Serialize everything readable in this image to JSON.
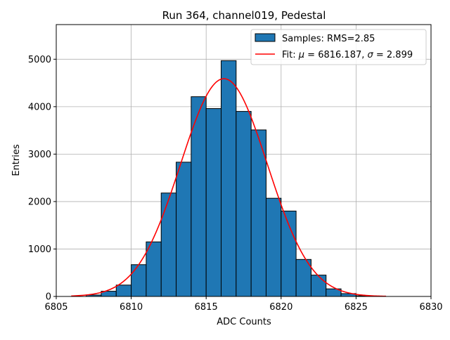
{
  "chart_data": {
    "type": "bar",
    "title": "Run 364, channel019, Pedestal",
    "xlabel": "ADC Counts",
    "ylabel": "Entries",
    "xlim": [
      6805,
      6830
    ],
    "ylim": [
      0,
      5730
    ],
    "xticks": [
      6805,
      6810,
      6815,
      6820,
      6825,
      6830
    ],
    "yticks": [
      0,
      1000,
      2000,
      3000,
      4000,
      5000
    ],
    "grid": true,
    "legend_placement": "top-right",
    "colors": {
      "bar_fill": "#1f77b4",
      "bar_edge": "#000000",
      "fit_line": "#ff0000",
      "grid": "#b0b0b0"
    },
    "histogram": {
      "name": "Samples: RMS=2.85",
      "bin_width": 1,
      "bin_starts": [
        6807,
        6808,
        6809,
        6810,
        6811,
        6812,
        6813,
        6814,
        6815,
        6816,
        6817,
        6818,
        6819,
        6820,
        6821,
        6822,
        6823,
        6824,
        6825
      ],
      "values": [
        30,
        110,
        240,
        670,
        1150,
        2180,
        2830,
        4210,
        3960,
        4970,
        3900,
        3510,
        2070,
        1800,
        780,
        450,
        160,
        60,
        15
      ]
    },
    "fit": {
      "name": "Fit: μ = 6816.187, σ = 2.899",
      "legend_prefix": "Fit: ",
      "mu_symbol": "μ",
      "mu_text": " = 6816.187, ",
      "sigma_symbol": "σ",
      "sigma_text": " = 2.899",
      "mu": 6816.187,
      "sigma": 2.899,
      "amplitude": 4590,
      "x_range": [
        6806,
        6827
      ]
    }
  }
}
